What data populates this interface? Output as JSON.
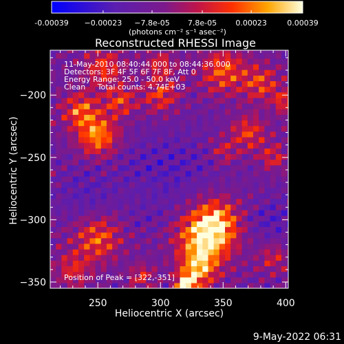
{
  "chart_data": {
    "type": "heatmap",
    "title": "Reconstructed RHESSI Image",
    "xlabel": "Heliocentric X (arcsec)",
    "ylabel": "Heliocentric Y (arcsec)",
    "xlim": [
      212,
      402
    ],
    "ylim": [
      -355,
      -164
    ],
    "xticks": [
      250,
      300,
      350,
      400
    ],
    "yticks": [
      -200,
      -250,
      -300,
      -350
    ],
    "colorbar": {
      "range": [
        -0.00039,
        0.00039
      ],
      "ticks": [
        "-0.00039",
        "−0.00023",
        "−7.8e-05",
        "7.8e-05",
        "0.00023",
        "0.00039"
      ],
      "unit": "(photons cm⁻² s⁻¹ asec⁻²)"
    },
    "annotations": [
      "11-May-2010 08:40:44.000 to 08:44:36.000",
      "Detectors: 3F 4F 5F 6F 7F 8F, Att 0",
      "Energy Range: 25.0 - 50.0 keV",
      "Clean     Total counts: 4.74E+03",
      "Position of Peak = [322,-351]"
    ],
    "peak": [
      322,
      -351
    ],
    "timestamp": "9-May-2022 06:31"
  }
}
